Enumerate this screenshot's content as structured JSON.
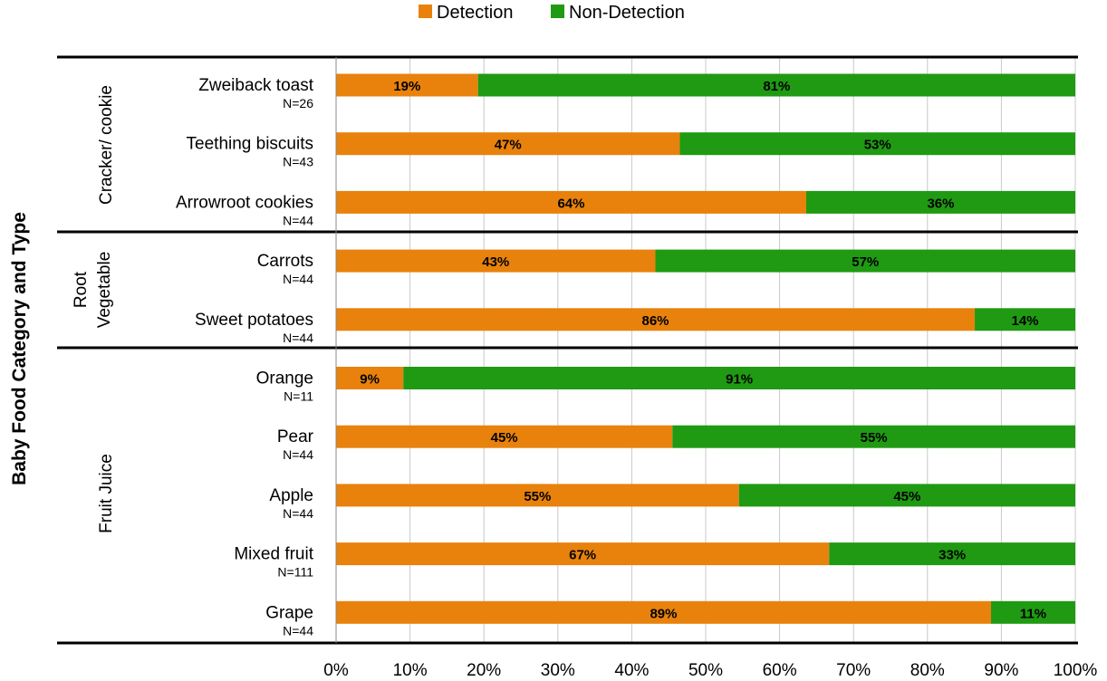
{
  "chart_data": {
    "type": "bar",
    "orientation": "horizontal",
    "stacked": true,
    "ylabel": "Baby Food  Category and Type",
    "xlim": [
      0,
      100
    ],
    "x_ticks": [
      "0%",
      "10%",
      "20%",
      "30%",
      "40%",
      "50%",
      "60%",
      "70%",
      "80%",
      "90%",
      "100%"
    ],
    "legend": {
      "placement": "top-center",
      "entries": [
        "Detection",
        "Non-Detection"
      ]
    },
    "colors": {
      "Detection": "#E8820C",
      "Non-Detection": "#1F9A12"
    },
    "grid": true,
    "groups": [
      {
        "name": "Cracker/ cookie",
        "rows": [
          0,
          1,
          2
        ]
      },
      {
        "name": "Root Vegetable",
        "name_lines": [
          "Root",
          "Vegetable"
        ],
        "rows": [
          3,
          4
        ]
      },
      {
        "name": "Fruit Juice",
        "rows": [
          5,
          6,
          7,
          8,
          9
        ]
      }
    ],
    "categories": [
      "Zweiback toast",
      "Teething biscuits",
      "Arrowroot cookies",
      "Carrots",
      "Sweet potatoes",
      "Orange",
      "Pear",
      "Apple",
      "Mixed fruit",
      "Grape"
    ],
    "n_labels": [
      "N=26",
      "N=43",
      "N=44",
      "N=44",
      "N=44",
      "N=11",
      "N=44",
      "N=44",
      "N=111",
      "N=44"
    ],
    "series": [
      {
        "name": "Detection",
        "values": [
          19.2,
          46.5,
          63.6,
          43.2,
          86.4,
          9.1,
          45.5,
          54.5,
          66.7,
          88.6
        ],
        "labels": [
          "19%",
          "47%",
          "64%",
          "43%",
          "86%",
          "9%",
          "45%",
          "55%",
          "67%",
          "89%"
        ]
      },
      {
        "name": "Non-Detection",
        "values": [
          80.8,
          53.5,
          36.4,
          56.8,
          13.6,
          90.9,
          54.5,
          45.5,
          33.3,
          11.4
        ],
        "labels": [
          "81%",
          "53%",
          "36%",
          "57%",
          "14%",
          "91%",
          "55%",
          "45%",
          "33%",
          "11%"
        ]
      }
    ]
  }
}
